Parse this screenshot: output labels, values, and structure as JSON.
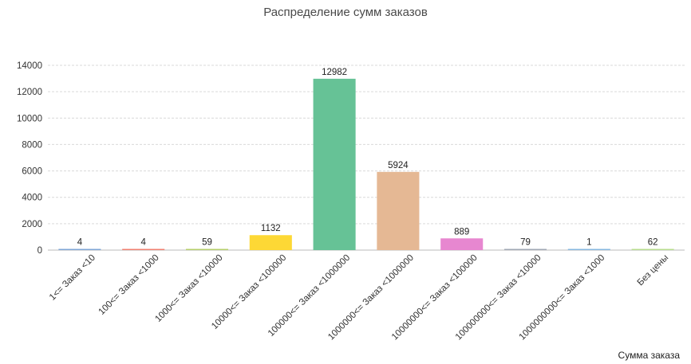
{
  "chart_data": {
    "type": "bar",
    "title": "Распределение сумм заказов",
    "xlabel": "Сумма заказа",
    "ylabel": "",
    "ylim": [
      0,
      14000
    ],
    "yticks": [
      0,
      2000,
      4000,
      6000,
      8000,
      10000,
      12000,
      14000
    ],
    "grid": true,
    "categories": [
      "1<= Заказ <10",
      "100<= Заказ <1000",
      "1000<= Заказ <10000",
      "10000<= Заказ <100000",
      "100000<= Заказ <1000000",
      "1000000<= Заказ <1000000",
      "10000000<= Заказ <100000",
      "100000000<= Заказ <10000",
      "1000000000<= Заказ <1000",
      "Без цены"
    ],
    "values": [
      4,
      4,
      59,
      1132,
      12982,
      5924,
      889,
      79,
      1,
      62
    ],
    "colors": [
      "#7fa6d6",
      "#f08070",
      "#b5cf6b",
      "#fdd835",
      "#66c296",
      "#e5b894",
      "#e787d0",
      "#a0a8b4",
      "#87b8e0",
      "#b8dd8f"
    ]
  }
}
